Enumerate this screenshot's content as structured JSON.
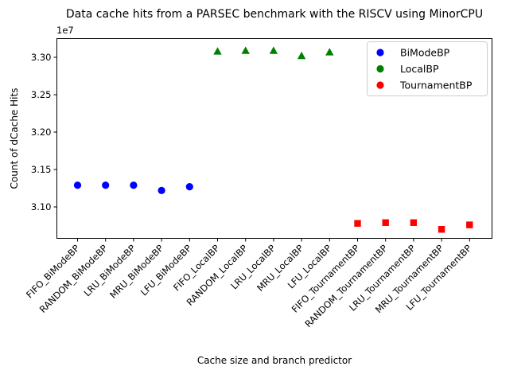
{
  "chart_data": {
    "type": "scatter",
    "title": "Data cache hits from a PARSEC benchmark with the RISCV using MinorCPU",
    "xlabel": "Cache size and branch predictor",
    "ylabel": "Count of dCache Hits",
    "offset_text": "1e7",
    "categories": [
      "FIFO_BiModeBP",
      "RANDOM_BiModeBP",
      "LRU_BiModeBP",
      "MRU_BiModeBP",
      "LFU_BiModeBP",
      "FIFO_LocalBP",
      "RANDOM_LocalBP",
      "LRU_LocalBP",
      "MRU_LocalBP",
      "LFU_LocalBP",
      "FIFO_TournamentBP",
      "RANDOM_TournamentBP",
      "LRU_TournamentBP",
      "MRU_TournamentBP",
      "LFU_TournamentBP"
    ],
    "yticks": [
      {
        "value": 3.1,
        "label": "3.10"
      },
      {
        "value": 3.15,
        "label": "3.15"
      },
      {
        "value": 3.2,
        "label": "3.20"
      },
      {
        "value": 3.25,
        "label": "3.25"
      },
      {
        "value": 3.3,
        "label": "3.30"
      }
    ],
    "ylim": [
      3.058,
      3.325
    ],
    "grid": false,
    "legend_position": "top-right",
    "series": [
      {
        "name": "BiModeBP",
        "color": "#0000ff",
        "marker": "circle",
        "x_index": [
          0,
          1,
          2,
          3,
          4
        ],
        "values": [
          3.129,
          3.129,
          3.129,
          3.122,
          3.127
        ]
      },
      {
        "name": "LocalBP",
        "color": "#008000",
        "marker": "triangle",
        "x_index": [
          5,
          6,
          7,
          8,
          9
        ],
        "values": [
          3.308,
          3.309,
          3.309,
          3.302,
          3.307
        ]
      },
      {
        "name": "TournamentBP",
        "color": "#ff0000",
        "marker": "square",
        "x_index": [
          10,
          11,
          12,
          13,
          14
        ],
        "values": [
          3.078,
          3.079,
          3.079,
          3.07,
          3.076
        ]
      }
    ]
  }
}
